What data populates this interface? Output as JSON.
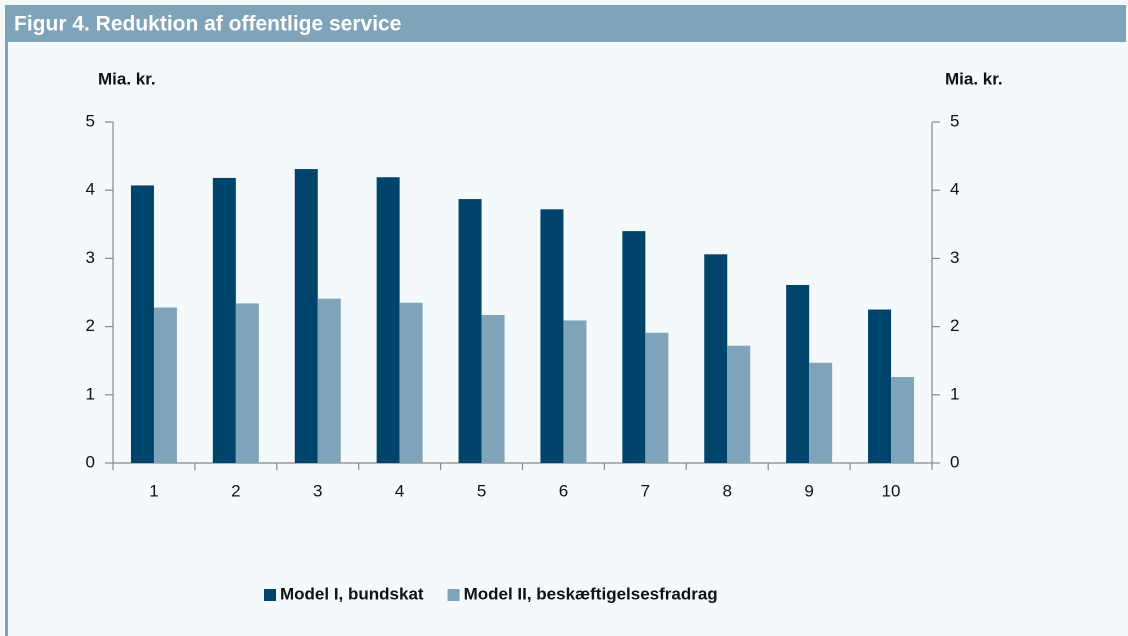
{
  "chart_data": {
    "type": "bar",
    "title": "Figur 4. Reduktion af offentlige service",
    "y_label": "Mia. kr.",
    "y2_label": "Mia. kr.",
    "categories": [
      "1",
      "2",
      "3",
      "4",
      "5",
      "6",
      "7",
      "8",
      "9",
      "10"
    ],
    "series": [
      {
        "name": "Model I, bundskat",
        "color": "#00436b",
        "values": [
          4.07,
          4.18,
          4.31,
          4.19,
          3.87,
          3.72,
          3.4,
          3.06,
          2.61,
          2.25
        ]
      },
      {
        "name": "Model II, beskæftigelsesfradrag",
        "color": "#7fa3b8",
        "values": [
          2.28,
          2.34,
          2.41,
          2.35,
          2.17,
          2.09,
          1.91,
          1.72,
          1.47,
          1.26
        ]
      }
    ],
    "ylim": [
      0,
      5
    ],
    "yticks": [
      0,
      1,
      2,
      3,
      4,
      5
    ],
    "y2lim": [
      0,
      5
    ],
    "y2ticks": [
      0,
      1,
      2,
      3,
      4,
      5
    ],
    "grid": false,
    "legend": "bottom"
  }
}
